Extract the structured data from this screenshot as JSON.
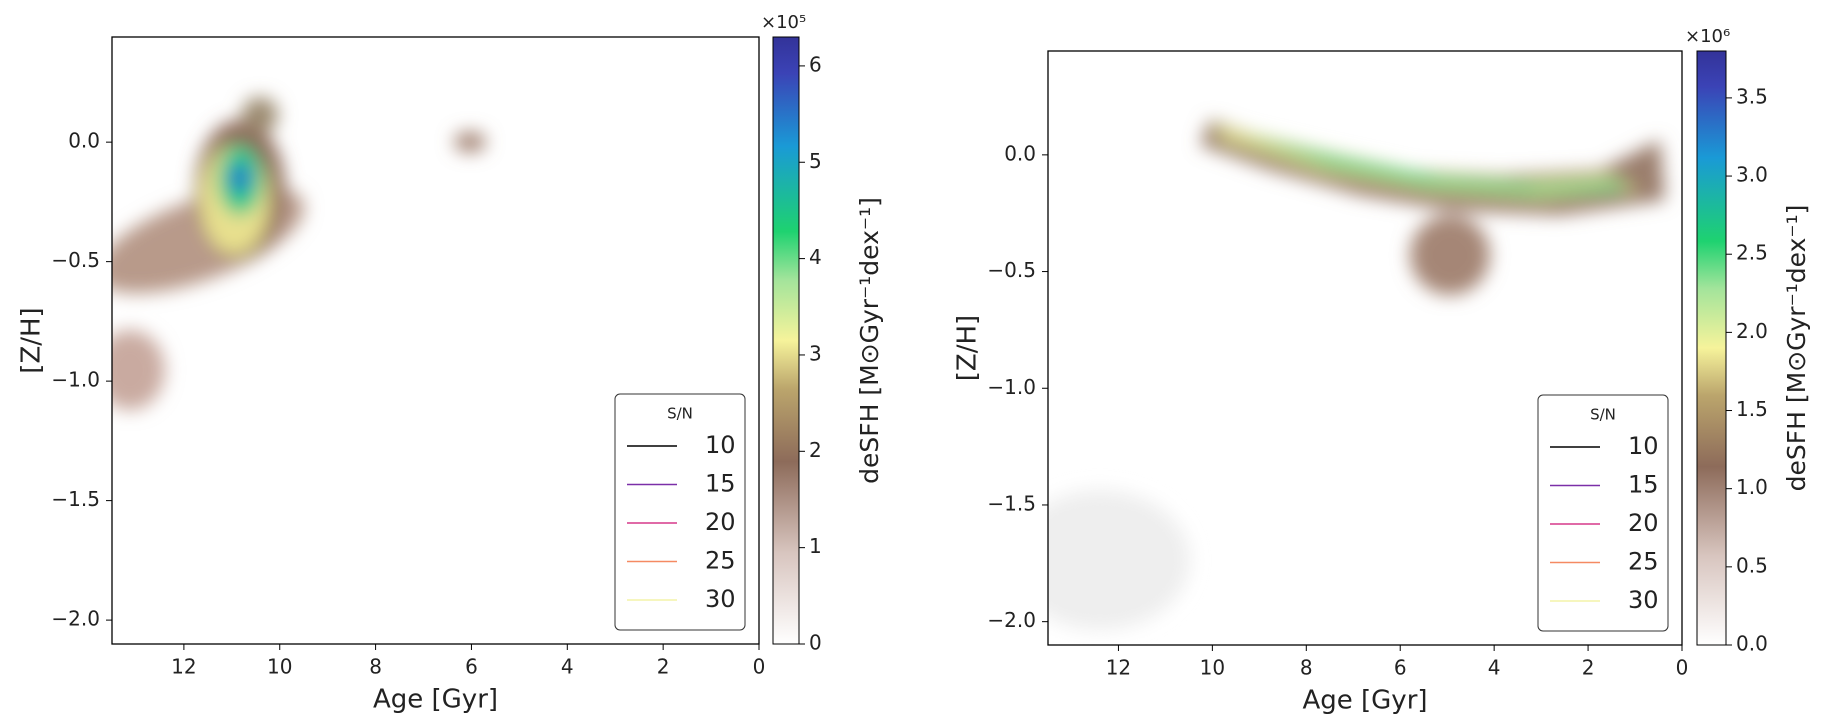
{
  "chart_data": [
    {
      "type": "heatmap",
      "xlabel": "Age [Gyr]",
      "ylabel": "[Z/H]",
      "xlim": [
        13.5,
        0
      ],
      "xticks": [
        12,
        10,
        8,
        6,
        4,
        2,
        0
      ],
      "ylim": [
        -2.1,
        0.44
      ],
      "yticks": [
        {
          "value": -2.0,
          "label": "−2.0"
        },
        {
          "value": -1.5,
          "label": "−1.5"
        },
        {
          "value": -1.0,
          "label": "−1.0"
        },
        {
          "value": -0.5,
          "label": "−0.5"
        },
        {
          "value": 0.0,
          "label": "0.0"
        }
      ],
      "colorbar": {
        "label": "deSFH [M⊙Gyr⁻¹dex⁻¹]",
        "multiplier": "×10⁵",
        "lim": [
          0,
          6.3
        ],
        "ticks": [
          0,
          1,
          2,
          3,
          4,
          5,
          6
        ]
      },
      "legend": {
        "title": "S/N",
        "loc": "lower right"
      },
      "contour_levels": [
        10,
        15,
        20,
        25,
        30
      ],
      "contour_colors": [
        "#000000",
        "#7b2fa8",
        "#d6398a",
        "#f58a62",
        "#f3f3a8"
      ]
    },
    {
      "type": "heatmap",
      "xlabel": "Age [Gyr]",
      "ylabel": "[Z/H]",
      "xlim": [
        13.5,
        0
      ],
      "xticks": [
        12,
        10,
        8,
        6,
        4,
        2,
        0
      ],
      "ylim": [
        -2.1,
        0.445
      ],
      "yticks": [
        {
          "value": -2.0,
          "label": "−2.0"
        },
        {
          "value": -1.5,
          "label": "−1.5"
        },
        {
          "value": -1.0,
          "label": "−1.0"
        },
        {
          "value": -0.5,
          "label": "−0.5"
        },
        {
          "value": 0.0,
          "label": "0.0"
        }
      ],
      "colorbar": {
        "label": "deSFH [M⊙Gyr⁻¹dex⁻¹]",
        "multiplier": "×10⁶",
        "lim": [
          0,
          3.8
        ],
        "ticks": [
          {
            "value": 0,
            "label": "0.0"
          },
          0.5,
          {
            "value": 1,
            "label": "1.0"
          },
          1.5,
          {
            "value": 2,
            "label": "2.0"
          },
          2.5,
          {
            "value": 3,
            "label": "3.0"
          },
          3.5
        ]
      },
      "legend": {
        "title": "S/N",
        "loc": "lower right"
      },
      "contour_levels": [
        10,
        15,
        20,
        25,
        30
      ],
      "contour_colors": [
        "#000000",
        "#7b2fa8",
        "#d6398a",
        "#f58a62",
        "#f3f3a8"
      ]
    }
  ]
}
